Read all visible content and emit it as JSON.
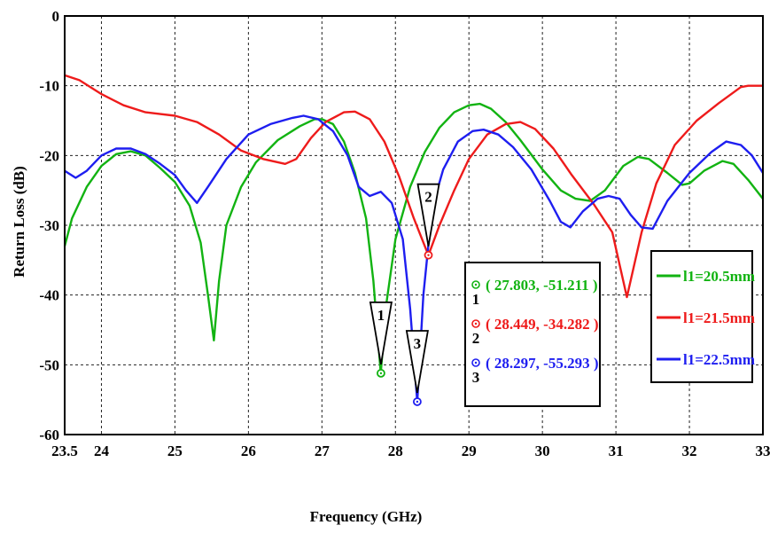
{
  "chart_data": {
    "type": "line",
    "title": "",
    "xlabel": "Frequency (GHz)",
    "ylabel": "Return Loss (dB)",
    "xlim": [
      23.5,
      33
    ],
    "ylim": [
      -60,
      0
    ],
    "grid": true,
    "x_ticks": [
      "23.5",
      "24",
      "25",
      "26",
      "27",
      "28",
      "29",
      "30",
      "31",
      "32",
      "33"
    ],
    "x_tick_values": [
      23.5,
      24,
      25,
      26,
      27,
      28,
      29,
      30,
      31,
      32,
      33
    ],
    "y_ticks": [
      "0",
      "-10",
      "-20",
      "-30",
      "-40",
      "-50",
      "-60"
    ],
    "y_tick_values": [
      0,
      -10,
      -20,
      -30,
      -40,
      -50,
      -60
    ],
    "series": [
      {
        "name": "l1=20.5mm",
        "color": "#12b312",
        "points": [
          [
            23.5,
            -33
          ],
          [
            23.6,
            -29
          ],
          [
            23.8,
            -24.5
          ],
          [
            24.0,
            -21.5
          ],
          [
            24.2,
            -19.8
          ],
          [
            24.4,
            -19.4
          ],
          [
            24.6,
            -20
          ],
          [
            24.8,
            -21.8
          ],
          [
            25.0,
            -23.8
          ],
          [
            25.2,
            -27.2
          ],
          [
            25.35,
            -32.5
          ],
          [
            25.45,
            -40
          ],
          [
            25.53,
            -46.5
          ],
          [
            25.6,
            -38
          ],
          [
            25.7,
            -30
          ],
          [
            25.9,
            -24.5
          ],
          [
            26.1,
            -21
          ],
          [
            26.4,
            -17.8
          ],
          [
            26.7,
            -15.8
          ],
          [
            26.9,
            -14.8
          ],
          [
            27.0,
            -14.8
          ],
          [
            27.15,
            -15.5
          ],
          [
            27.3,
            -18
          ],
          [
            27.45,
            -22.5
          ],
          [
            27.6,
            -29
          ],
          [
            27.7,
            -38
          ],
          [
            27.8,
            -51.2
          ],
          [
            27.88,
            -41
          ],
          [
            28.0,
            -32
          ],
          [
            28.2,
            -24.5
          ],
          [
            28.4,
            -19.5
          ],
          [
            28.6,
            -16
          ],
          [
            28.8,
            -13.8
          ],
          [
            29.0,
            -12.8
          ],
          [
            29.15,
            -12.6
          ],
          [
            29.3,
            -13.3
          ],
          [
            29.5,
            -15.2
          ],
          [
            29.7,
            -17.8
          ],
          [
            30.0,
            -22
          ],
          [
            30.25,
            -25
          ],
          [
            30.45,
            -26.2
          ],
          [
            30.65,
            -26.5
          ],
          [
            30.85,
            -25
          ],
          [
            31.1,
            -21.5
          ],
          [
            31.3,
            -20.2
          ],
          [
            31.45,
            -20.5
          ],
          [
            31.7,
            -22.5
          ],
          [
            31.9,
            -24.2
          ],
          [
            32.0,
            -24
          ],
          [
            32.2,
            -22.2
          ],
          [
            32.45,
            -20.8
          ],
          [
            32.6,
            -21.2
          ],
          [
            32.8,
            -23.5
          ],
          [
            33.0,
            -26.2
          ]
        ]
      },
      {
        "name": "l1=21.5mm",
        "color": "#ee1b1b",
        "points": [
          [
            23.5,
            -8.5
          ],
          [
            23.7,
            -9.2
          ],
          [
            24.0,
            -11.2
          ],
          [
            24.3,
            -12.8
          ],
          [
            24.6,
            -13.8
          ],
          [
            25.0,
            -14.3
          ],
          [
            25.3,
            -15.2
          ],
          [
            25.6,
            -17
          ],
          [
            25.9,
            -19.3
          ],
          [
            26.2,
            -20.5
          ],
          [
            26.5,
            -21.2
          ],
          [
            26.65,
            -20.5
          ],
          [
            26.85,
            -17.5
          ],
          [
            27.05,
            -15.2
          ],
          [
            27.3,
            -13.8
          ],
          [
            27.45,
            -13.7
          ],
          [
            27.65,
            -14.8
          ],
          [
            27.85,
            -18
          ],
          [
            28.05,
            -23
          ],
          [
            28.25,
            -29
          ],
          [
            28.449,
            -34.3
          ],
          [
            28.6,
            -30
          ],
          [
            28.8,
            -25
          ],
          [
            29.0,
            -20.5
          ],
          [
            29.25,
            -17
          ],
          [
            29.5,
            -15.5
          ],
          [
            29.7,
            -15.2
          ],
          [
            29.9,
            -16.2
          ],
          [
            30.15,
            -19
          ],
          [
            30.4,
            -22.8
          ],
          [
            30.7,
            -27
          ],
          [
            30.95,
            -31
          ],
          [
            31.15,
            -40.3
          ],
          [
            31.35,
            -31
          ],
          [
            31.55,
            -24
          ],
          [
            31.8,
            -18.5
          ],
          [
            32.1,
            -15
          ],
          [
            32.4,
            -12.5
          ],
          [
            32.7,
            -10.2
          ],
          [
            32.8,
            -10
          ],
          [
            33.0,
            -10
          ]
        ]
      },
      {
        "name": "l1=22.5mm",
        "color": "#1e1ef0",
        "points": [
          [
            23.5,
            -22.2
          ],
          [
            23.65,
            -23.2
          ],
          [
            23.8,
            -22.2
          ],
          [
            24.0,
            -20
          ],
          [
            24.2,
            -19
          ],
          [
            24.4,
            -19
          ],
          [
            24.6,
            -19.8
          ],
          [
            24.8,
            -21.2
          ],
          [
            25.0,
            -22.8
          ],
          [
            25.15,
            -25
          ],
          [
            25.3,
            -26.8
          ],
          [
            25.45,
            -24.5
          ],
          [
            25.7,
            -20.5
          ],
          [
            26.0,
            -17
          ],
          [
            26.3,
            -15.5
          ],
          [
            26.6,
            -14.6
          ],
          [
            26.75,
            -14.3
          ],
          [
            26.95,
            -14.8
          ],
          [
            27.15,
            -16.5
          ],
          [
            27.35,
            -20
          ],
          [
            27.5,
            -24.5
          ],
          [
            27.65,
            -25.8
          ],
          [
            27.8,
            -25.2
          ],
          [
            27.95,
            -26.8
          ],
          [
            28.1,
            -32
          ],
          [
            28.2,
            -42
          ],
          [
            28.297,
            -55.3
          ],
          [
            28.38,
            -40
          ],
          [
            28.5,
            -27.5
          ],
          [
            28.65,
            -22
          ],
          [
            28.85,
            -18
          ],
          [
            29.05,
            -16.5
          ],
          [
            29.2,
            -16.3
          ],
          [
            29.4,
            -17
          ],
          [
            29.6,
            -18.8
          ],
          [
            29.85,
            -22
          ],
          [
            30.1,
            -26.5
          ],
          [
            30.25,
            -29.5
          ],
          [
            30.38,
            -30.3
          ],
          [
            30.55,
            -28
          ],
          [
            30.75,
            -26.2
          ],
          [
            30.9,
            -25.8
          ],
          [
            31.05,
            -26.2
          ],
          [
            31.2,
            -28.5
          ],
          [
            31.35,
            -30.3
          ],
          [
            31.5,
            -30.5
          ],
          [
            31.7,
            -26.5
          ],
          [
            32.0,
            -22.5
          ],
          [
            32.3,
            -19.5
          ],
          [
            32.5,
            -18
          ],
          [
            32.7,
            -18.5
          ],
          [
            32.85,
            -20
          ],
          [
            33.0,
            -22.5
          ]
        ]
      }
    ],
    "markers": [
      {
        "id": "1",
        "x": 27.803,
        "y": -51.211,
        "color": "#12b312",
        "label": "( 27.803, -51.211 )"
      },
      {
        "id": "2",
        "x": 28.449,
        "y": -34.282,
        "color": "#ee1b1b",
        "label": "( 28.449, -34.282 )"
      },
      {
        "id": "3",
        "x": 28.297,
        "y": -55.293,
        "color": "#1e1ef0",
        "label": "( 28.297, -55.293 )"
      }
    ],
    "legend_position": "right"
  }
}
